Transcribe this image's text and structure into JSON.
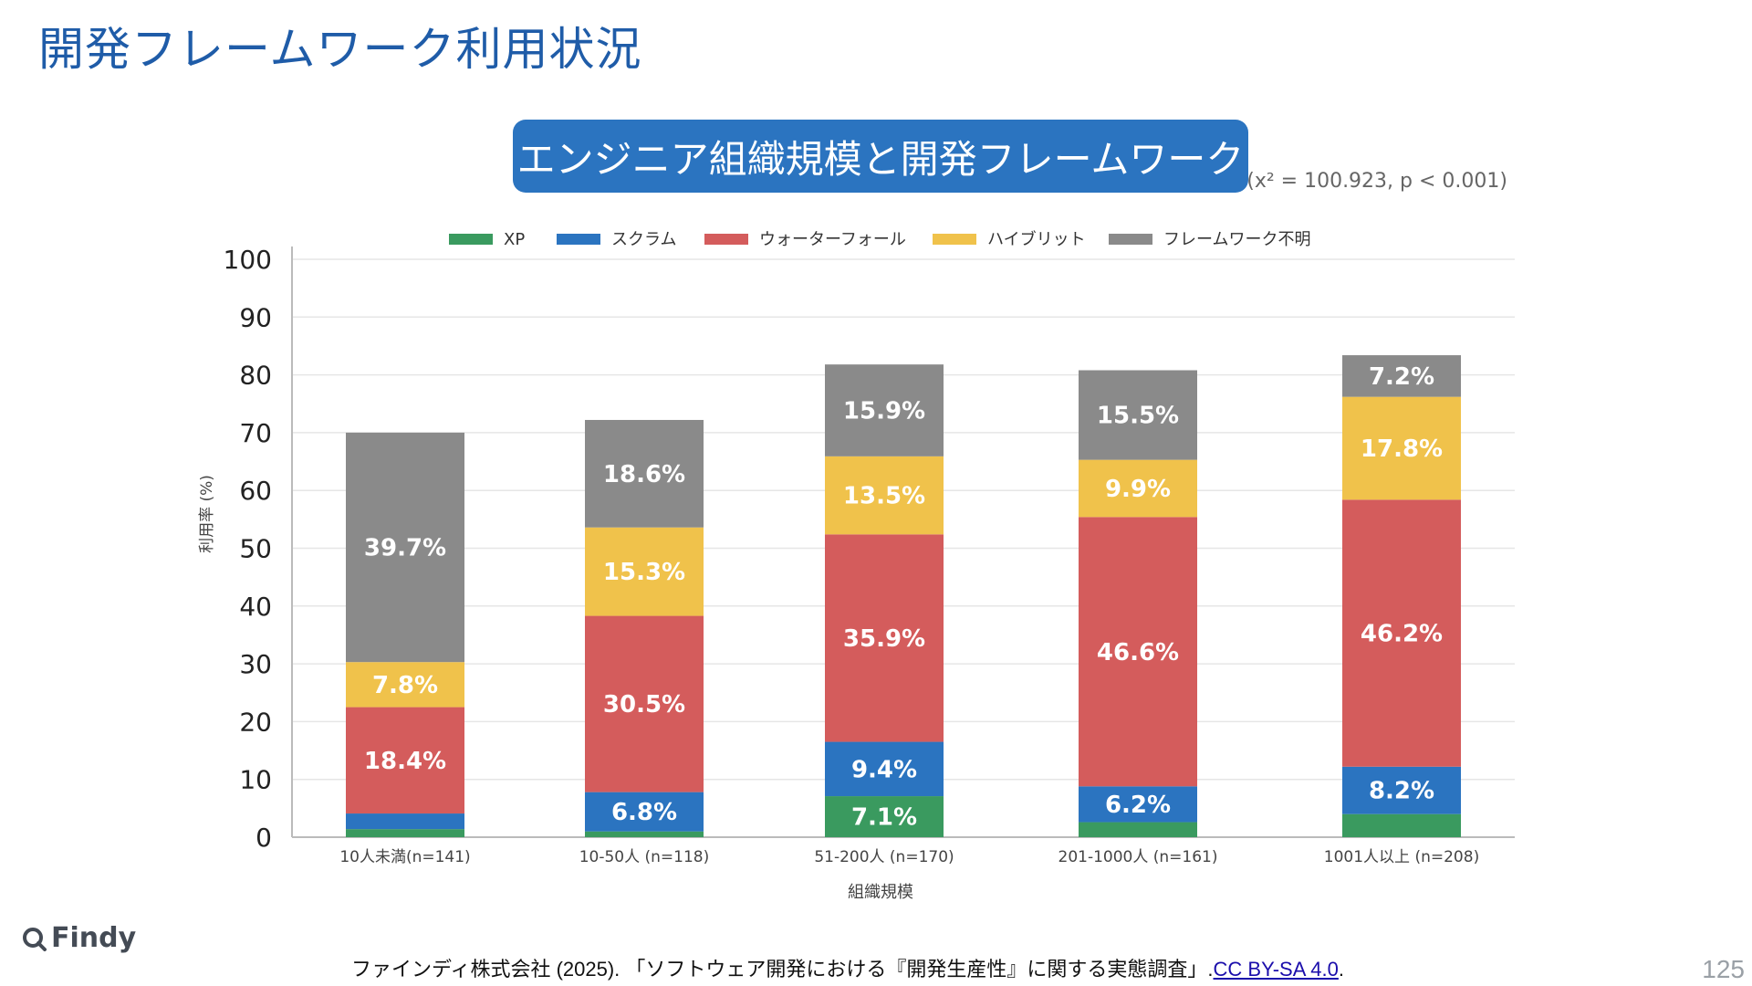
{
  "page": {
    "title": "開発フレームワーク利用状況",
    "banner": "エンジニア組織規模と開発フレームワーク",
    "stat_note": "(x² = 100.923, p < 0.001)",
    "logo_text": "Findy",
    "citation_text": "ファインディ株式会社 (2025). 「ソフトウェア開発における『開発生産性』に関する実態調査」.",
    "citation_link": "CC BY-SA 4.0",
    "citation_end": ".",
    "page_number": "125"
  },
  "chart_data": {
    "type": "bar",
    "stacked": true,
    "title": "エンジニア組織規模と開発フレームワーク",
    "xlabel": "組織規模",
    "ylabel": "利用率 (%)",
    "ylim": [
      0,
      100
    ],
    "yticks": [
      0,
      10,
      20,
      30,
      40,
      50,
      60,
      70,
      80,
      90,
      100
    ],
    "grid": true,
    "legend_position": "top",
    "categories": [
      "10人未満(n=141)",
      "10-50人 (n=118)",
      "51-200人 (n=170)",
      "201-1000人 (n=161)",
      "1001人以上 (n=208)"
    ],
    "series": [
      {
        "name": "XP",
        "color": "#3a9a5f",
        "values": [
          1.4,
          1.0,
          7.1,
          2.6,
          4.0
        ],
        "labels": [
          "",
          "",
          "7.1%",
          "",
          ""
        ]
      },
      {
        "name": "スクラム",
        "color": "#2b74c0",
        "values": [
          2.7,
          6.8,
          9.4,
          6.2,
          8.2
        ],
        "labels": [
          "",
          "6.8%",
          "9.4%",
          "6.2%",
          "8.2%"
        ]
      },
      {
        "name": "ウォーターフォール",
        "color": "#d45c5c",
        "values": [
          18.4,
          30.5,
          35.9,
          46.6,
          46.2
        ],
        "labels": [
          "18.4%",
          "30.5%",
          "35.9%",
          "46.6%",
          "46.2%"
        ]
      },
      {
        "name": "ハイブリット",
        "color": "#f0c24b",
        "values": [
          7.8,
          15.3,
          13.5,
          9.9,
          17.8
        ],
        "labels": [
          "7.8%",
          "15.3%",
          "13.5%",
          "9.9%",
          "17.8%"
        ]
      },
      {
        "name": "フレームワーク不明",
        "color": "#8a8a8a",
        "values": [
          39.7,
          18.6,
          15.9,
          15.5,
          7.2
        ],
        "labels": [
          "39.7%",
          "18.6%",
          "15.9%",
          "15.5%",
          "7.2%"
        ]
      }
    ]
  }
}
